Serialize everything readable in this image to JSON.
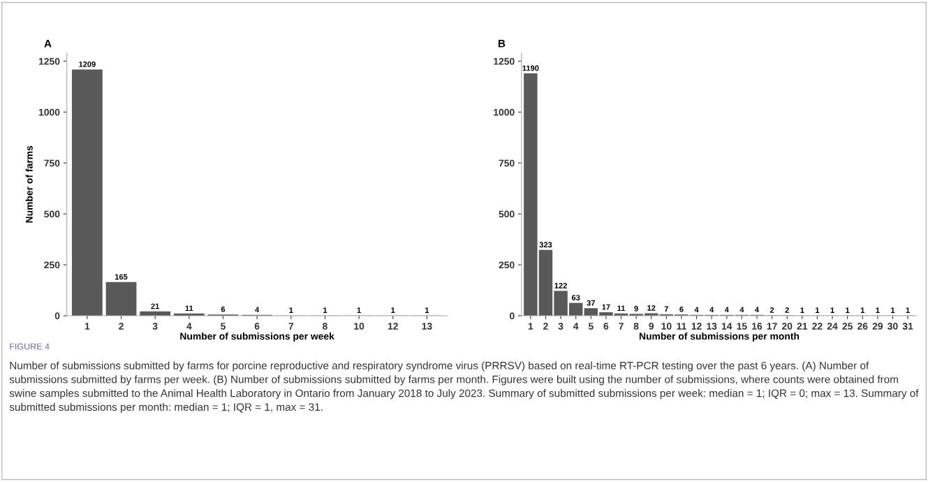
{
  "chart_data": [
    {
      "type": "bar",
      "title": "A",
      "xlabel": "Number of submissions per week",
      "ylabel": "Number of farms",
      "categories": [
        "1",
        "2",
        "3",
        "4",
        "5",
        "6",
        "7",
        "8",
        "10",
        "12",
        "13"
      ],
      "values": [
        1209,
        165,
        21,
        11,
        6,
        4,
        1,
        1,
        1,
        1,
        1
      ],
      "color": "#595959",
      "ylim": [
        0,
        1290
      ],
      "yticks": [
        0,
        250,
        500,
        750,
        1000,
        1250
      ],
      "data_labels": true,
      "grid": false,
      "annotations": [
        "FIGURE 4",
        "Number of submissions submitted by farms for porcine reproductive and respiratory syndrome virus (PRRSV) based on real-time RT-PCR testing over the past 6 years. (A) Number of submissions submitted by farms per week. (B) Number of submissions submitted by farms per month. Figures were built using the number of submissions, where counts were obtained from swine samples submitted to the Animal Health Laboratory in Ontario from January 2018 to July 2023. Summary of submitted submissions per week: median = 1; IQR = 0; max = 13. Summary of submitted submissions per month: median = 1; IQR = 1, max = 31."
      ]
    },
    {
      "type": "bar",
      "title": "B",
      "xlabel": "Number of submissions per month",
      "categories": [
        "1",
        "2",
        "3",
        "4",
        "5",
        "6",
        "7",
        "8",
        "9",
        "10",
        "11",
        "12",
        "13",
        "14",
        "15",
        "16",
        "17",
        "20",
        "21",
        "22",
        "24",
        "25",
        "26",
        "29",
        "30",
        "31"
      ],
      "values": [
        1190,
        323,
        122,
        63,
        37,
        17,
        11,
        9,
        12,
        7,
        6,
        4,
        4,
        4,
        4,
        4,
        2,
        2,
        1,
        1,
        1,
        1,
        1,
        1,
        1,
        1
      ],
      "color": "#595959",
      "ylim": [
        0,
        1290
      ],
      "yticks": [
        0,
        250,
        500,
        750,
        1000,
        1250
      ],
      "data_labels": true,
      "grid": false
    }
  ]
}
